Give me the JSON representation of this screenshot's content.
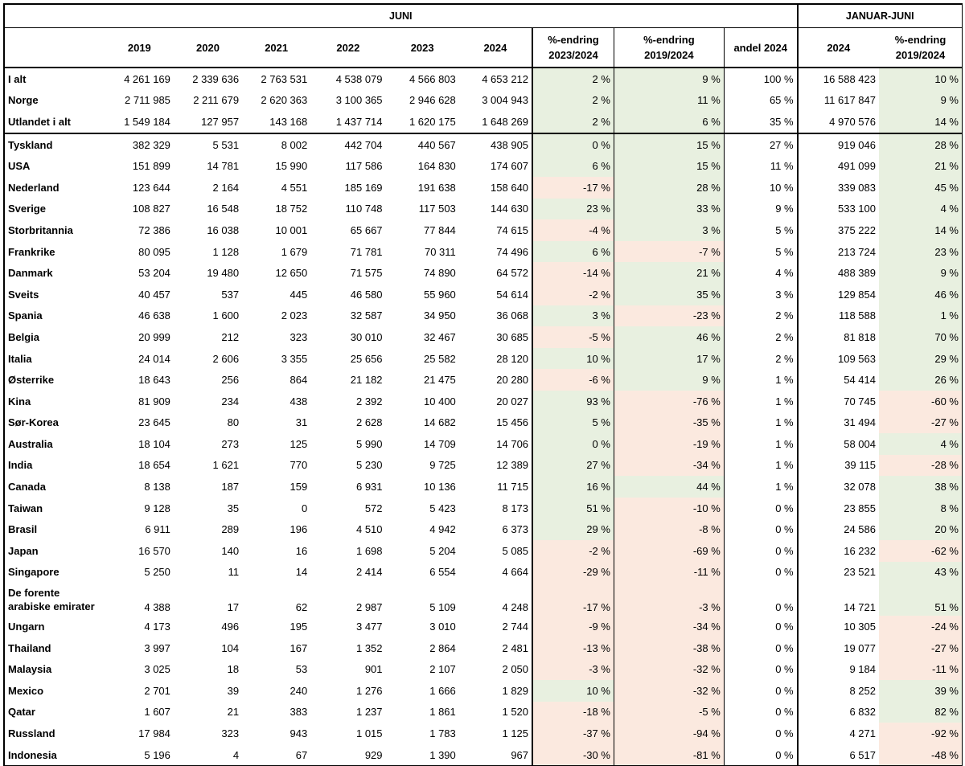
{
  "header": {
    "juni": "JUNI",
    "januar_juni": "JANUAR-JUNI"
  },
  "columns": [
    "",
    "2019",
    "2020",
    "2021",
    "2022",
    "2023",
    "2024",
    "%-endring 2023/2024",
    "%-endring 2019/2024",
    "andel 2024",
    "2024",
    "%-endring 2019/2024"
  ],
  "colors": {
    "positive": "#e8f0e0",
    "negative": "#fbe9df"
  },
  "rows": [
    [
      "I alt",
      "4 261 169",
      "2 339 636",
      "2 763 531",
      "4 538 079",
      "4 566 803",
      "4 653 212",
      "2 %",
      "9 %",
      "100 %",
      "16 588 423",
      "10 %"
    ],
    [
      "Norge",
      "2 711 985",
      "2 211 679",
      "2 620 363",
      "3 100 365",
      "2 946 628",
      "3 004 943",
      "2 %",
      "11 %",
      "65 %",
      "11 617 847",
      "9 %"
    ],
    [
      "Utlandet i alt",
      "1 549 184",
      "127 957",
      "143 168",
      "1 437 714",
      "1 620 175",
      "1 648 269",
      "2 %",
      "6 %",
      "35 %",
      "4 970 576",
      "14 %"
    ],
    [
      "Tyskland",
      "382 329",
      "5 531",
      "8 002",
      "442 704",
      "440 567",
      "438 905",
      "0 %",
      "15 %",
      "27 %",
      "919 046",
      "28 %"
    ],
    [
      "USA",
      "151 899",
      "14 781",
      "15 990",
      "117 586",
      "164 830",
      "174 607",
      "6 %",
      "15 %",
      "11 %",
      "491 099",
      "21 %"
    ],
    [
      "Nederland",
      "123 644",
      "2 164",
      "4 551",
      "185 169",
      "191 638",
      "158 640",
      "-17 %",
      "28 %",
      "10 %",
      "339 083",
      "45 %"
    ],
    [
      "Sverige",
      "108 827",
      "16 548",
      "18 752",
      "110 748",
      "117 503",
      "144 630",
      "23 %",
      "33 %",
      "9 %",
      "533 100",
      "4 %"
    ],
    [
      "Storbritannia",
      "72 386",
      "16 038",
      "10 001",
      "65 667",
      "77 844",
      "74 615",
      "-4 %",
      "3 %",
      "5 %",
      "375 222",
      "14 %"
    ],
    [
      "Frankrike",
      "80 095",
      "1 128",
      "1 679",
      "71 781",
      "70 311",
      "74 496",
      "6 %",
      "-7 %",
      "5 %",
      "213 724",
      "23 %"
    ],
    [
      "Danmark",
      "53 204",
      "19 480",
      "12 650",
      "71 575",
      "74 890",
      "64 572",
      "-14 %",
      "21 %",
      "4 %",
      "488 389",
      "9 %"
    ],
    [
      "Sveits",
      "40 457",
      "537",
      "445",
      "46 580",
      "55 960",
      "54 614",
      "-2 %",
      "35 %",
      "3 %",
      "129 854",
      "46 %"
    ],
    [
      "Spania",
      "46 638",
      "1 600",
      "2 023",
      "32 587",
      "34 950",
      "36 068",
      "3 %",
      "-23 %",
      "2 %",
      "118 588",
      "1 %"
    ],
    [
      "Belgia",
      "20 999",
      "212",
      "323",
      "30 010",
      "32 467",
      "30 685",
      "-5 %",
      "46 %",
      "2 %",
      "81 818",
      "70 %"
    ],
    [
      "Italia",
      "24 014",
      "2 606",
      "3 355",
      "25 656",
      "25 582",
      "28 120",
      "10 %",
      "17 %",
      "2 %",
      "109 563",
      "29 %"
    ],
    [
      "Østerrike",
      "18 643",
      "256",
      "864",
      "21 182",
      "21 475",
      "20 280",
      "-6 %",
      "9 %",
      "1 %",
      "54 414",
      "26 %"
    ],
    [
      "Kina",
      "81 909",
      "234",
      "438",
      "2 392",
      "10 400",
      "20 027",
      "93 %",
      "-76 %",
      "1 %",
      "70 745",
      "-60 %"
    ],
    [
      "Sør-Korea",
      "23 645",
      "80",
      "31",
      "2 628",
      "14 682",
      "15 456",
      "5 %",
      "-35 %",
      "1 %",
      "31 494",
      "-27 %"
    ],
    [
      "Australia",
      "18 104",
      "273",
      "125",
      "5 990",
      "14 709",
      "14 706",
      "0 %",
      "-19 %",
      "1 %",
      "58 004",
      "4 %"
    ],
    [
      "India",
      "18 654",
      "1 621",
      "770",
      "5 230",
      "9 725",
      "12 389",
      "27 %",
      "-34 %",
      "1 %",
      "39 115",
      "-28 %"
    ],
    [
      "Canada",
      "8 138",
      "187",
      "159",
      "6 931",
      "10 136",
      "11 715",
      "16 %",
      "44 %",
      "1 %",
      "32 078",
      "38 %"
    ],
    [
      "Taiwan",
      "9 128",
      "35",
      "0",
      "572",
      "5 423",
      "8 173",
      "51 %",
      "-10 %",
      "0 %",
      "23 855",
      "8 %"
    ],
    [
      "Brasil",
      "6 911",
      "289",
      "196",
      "4 510",
      "4 942",
      "6 373",
      "29 %",
      "-8 %",
      "0 %",
      "24 586",
      "20 %"
    ],
    [
      "Japan",
      "16 570",
      "140",
      "16",
      "1 698",
      "5 204",
      "5 085",
      "-2 %",
      "-69 %",
      "0 %",
      "16 232",
      "-62 %"
    ],
    [
      "Singapore",
      "5 250",
      "11",
      "14",
      "2 414",
      "6 554",
      "4 664",
      "-29 %",
      "-11 %",
      "0 %",
      "23 521",
      "43 %"
    ],
    [
      "De forente arabiske emirater",
      "4 388",
      "17",
      "62",
      "2 987",
      "5 109",
      "4 248",
      "-17 %",
      "-3 %",
      "0 %",
      "14 721",
      "51 %"
    ],
    [
      "Ungarn",
      "4 173",
      "496",
      "195",
      "3 477",
      "3 010",
      "2 744",
      "-9 %",
      "-34 %",
      "0 %",
      "10 305",
      "-24 %"
    ],
    [
      "Thailand",
      "3 997",
      "104",
      "167",
      "1 352",
      "2 864",
      "2 481",
      "-13 %",
      "-38 %",
      "0 %",
      "19 077",
      "-27 %"
    ],
    [
      "Malaysia",
      "3 025",
      "18",
      "53",
      "901",
      "2 107",
      "2 050",
      "-3 %",
      "-32 %",
      "0 %",
      "9 184",
      "-11 %"
    ],
    [
      "Mexico",
      "2 701",
      "39",
      "240",
      "1 276",
      "1 666",
      "1 829",
      "10 %",
      "-32 %",
      "0 %",
      "8 252",
      "39 %"
    ],
    [
      "Qatar",
      "1 607",
      "21",
      "383",
      "1 237",
      "1 861",
      "1 520",
      "-18 %",
      "-5 %",
      "0 %",
      "6 832",
      "82 %"
    ],
    [
      "Russland",
      "17 984",
      "323",
      "943",
      "1 015",
      "1 783",
      "1 125",
      "-37 %",
      "-94 %",
      "0 %",
      "4 271",
      "-92 %"
    ],
    [
      "Indonesia",
      "5 196",
      "4",
      "67",
      "929",
      "1 390",
      "967",
      "-30 %",
      "-81 %",
      "0 %",
      "6 517",
      "-48 %"
    ]
  ]
}
